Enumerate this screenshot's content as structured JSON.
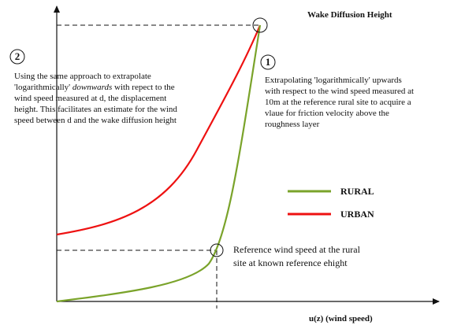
{
  "title": "Wake Diffusion Height",
  "x_axis_label": "u(z) (wind speed)",
  "annotation_2": {
    "marker": "2",
    "lines": [
      "Using the same approach to extrapolate",
      {
        "before": "'logarithmically' ",
        "italic": "downwards",
        "after": " with repect to the"
      },
      "wind speed measured at d, the displacement",
      "height. This facilitates an estimate for the wind",
      "speed between d and the wake diffusion height"
    ]
  },
  "annotation_1": {
    "marker": "1",
    "lines": [
      "Extrapolating 'logarithmically' upwards",
      "with respect to the wind speed measured at",
      "10m at the reference rural site to acquire a",
      "vlaue for friction velocity above the",
      "roughness layer"
    ]
  },
  "reference_note": {
    "lines": [
      "Reference wind speed at the rural",
      "site at known reference ehight"
    ]
  },
  "legend": [
    {
      "name": "RURAL",
      "color": "#7aa32a"
    },
    {
      "name": "URBAN",
      "color": "#ee1111"
    }
  ]
}
